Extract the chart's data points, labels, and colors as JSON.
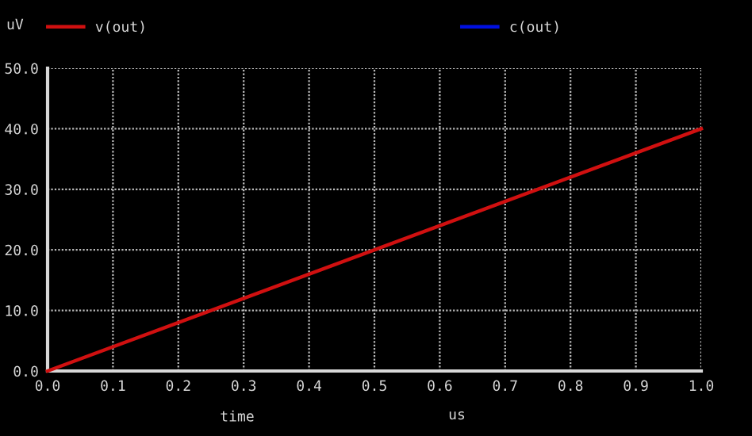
{
  "chart_data": {
    "type": "line",
    "ylabel": "uV",
    "xlabel": "time",
    "annotations": [
      "us"
    ],
    "x": [
      0.0,
      1.0
    ],
    "series": [
      {
        "name": "v(out)",
        "color": "#d01010",
        "values": [
          0.0,
          40.0
        ]
      },
      {
        "name": "c(out)",
        "color": "#0010e0",
        "values": [
          null,
          null
        ]
      }
    ],
    "xlim": [
      0.0,
      1.0
    ],
    "ylim": [
      0.0,
      50.0
    ],
    "xticks": [
      {
        "value": 0.0,
        "label": "0.0"
      },
      0.1,
      0.2,
      0.3,
      0.4,
      0.5,
      0.6,
      0.7,
      0.8,
      0.9,
      {
        "value": 1.0,
        "label": "1.0"
      }
    ],
    "yticks": [
      {
        "value": 0.0,
        "label": "0.0"
      },
      {
        "value": 10.0,
        "label": "10.0"
      },
      {
        "value": 20.0,
        "label": "20.0"
      },
      {
        "value": 30.0,
        "label": "30.0"
      },
      {
        "value": 40.0,
        "label": "40.0"
      },
      {
        "value": 50.0,
        "label": "50.0"
      }
    ],
    "grid": true,
    "legend": "top",
    "marker": "none",
    "line_style": "solid"
  }
}
